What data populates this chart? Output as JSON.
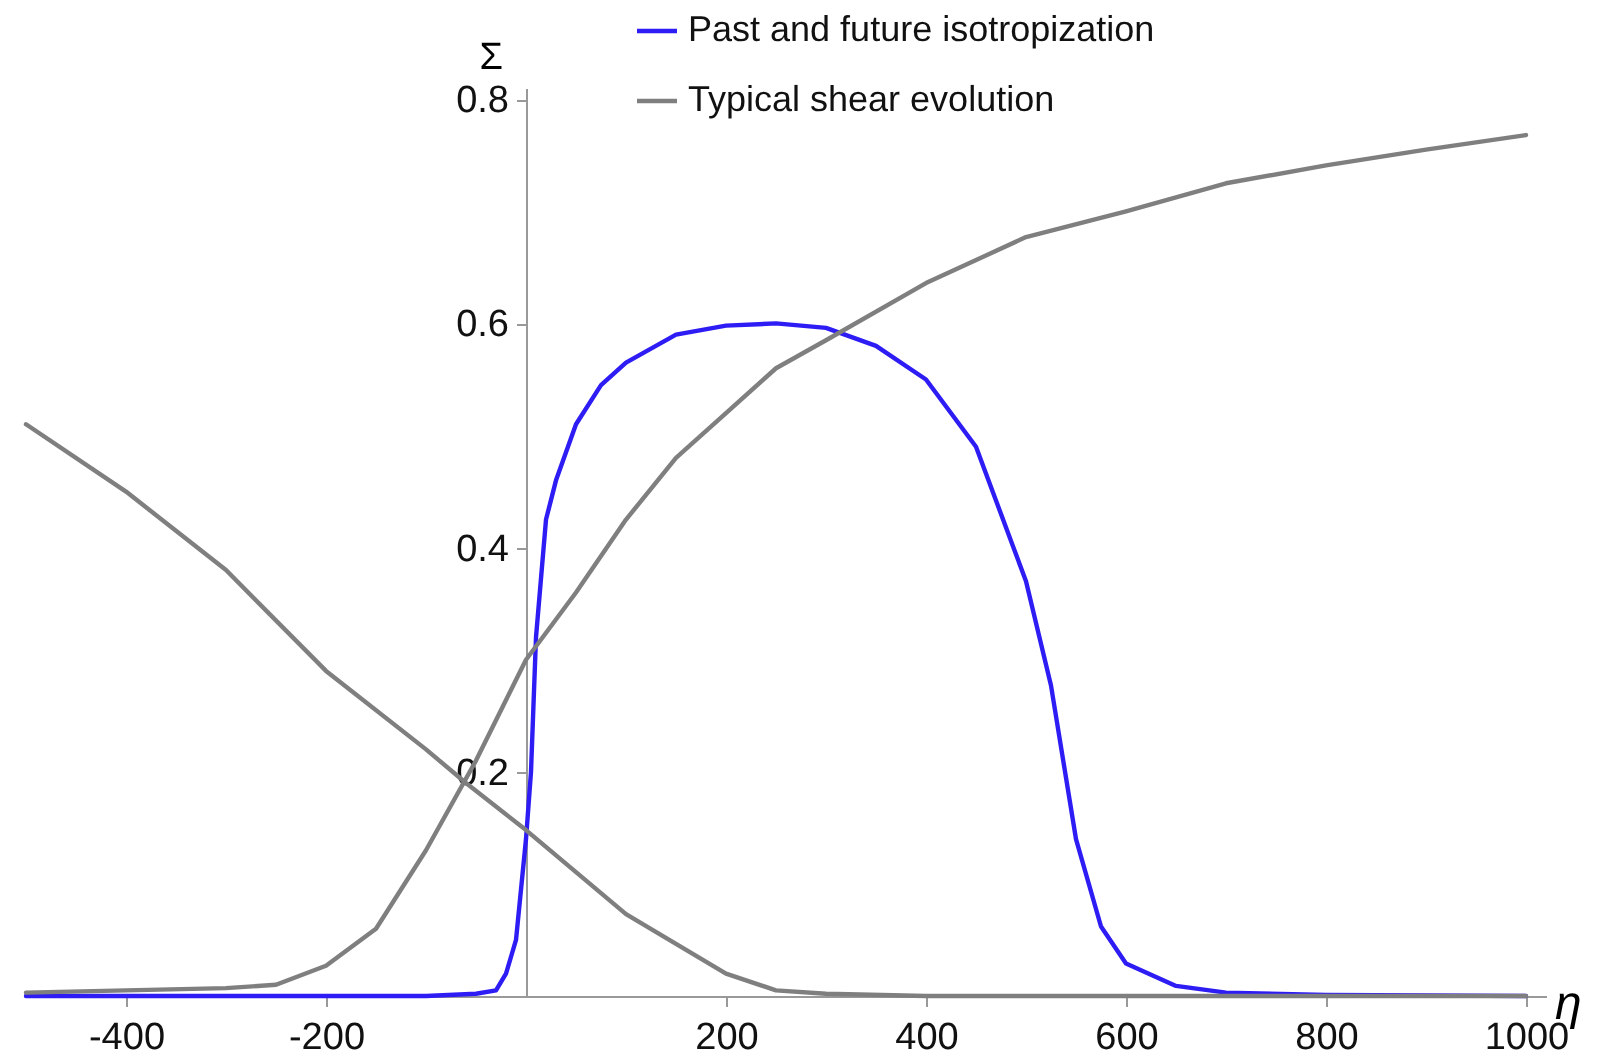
{
  "chart_data": {
    "type": "line",
    "xlabel": "η",
    "ylabel": "Σ",
    "xlim": [
      -500,
      1020
    ],
    "ylim": [
      0,
      0.81
    ],
    "xticks": [
      -400,
      -200,
      200,
      400,
      600,
      800,
      1000
    ],
    "yticks": [
      0.2,
      0.4,
      0.6,
      0.8
    ],
    "legend": "top",
    "grid": false,
    "line_style": "solid",
    "marker": "none",
    "series": [
      {
        "name": "Past and future isotropization",
        "color": "#2e1cf5",
        "x": [
          -500,
          -300,
          -100,
          -50,
          -30,
          -20,
          -10,
          0,
          5,
          10,
          20,
          30,
          50,
          75,
          100,
          150,
          200,
          250,
          300,
          350,
          400,
          450,
          500,
          525,
          550,
          575,
          600,
          650,
          700,
          800,
          1000
        ],
        "values": [
          0,
          0,
          0,
          0.002,
          0.005,
          0.02,
          0.05,
          0.14,
          0.2,
          0.32,
          0.425,
          0.46,
          0.51,
          0.545,
          0.565,
          0.59,
          0.598,
          0.6,
          0.596,
          0.58,
          0.55,
          0.49,
          0.37,
          0.277,
          0.14,
          0.062,
          0.029,
          0.009,
          0.003,
          0.001,
          0
        ]
      },
      {
        "name": "Typical shear evolution",
        "color": "#7f7f7f",
        "x": [
          -500,
          -400,
          -300,
          -250,
          -200,
          -150,
          -100,
          -50,
          0,
          50,
          100,
          150,
          200,
          250,
          300,
          400,
          500,
          600,
          700,
          800,
          900,
          1000
        ],
        "values": [
          0.003,
          0.005,
          0.007,
          0.01,
          0.027,
          0.06,
          0.13,
          0.21,
          0.3,
          0.36,
          0.425,
          0.48,
          0.52,
          0.56,
          0.585,
          0.636,
          0.677,
          0.7,
          0.725,
          0.741,
          0.755,
          0.768
        ]
      },
      {
        "color": "#7f7f7f",
        "x": [
          -500,
          -400,
          -300,
          -200,
          -100,
          -60,
          0,
          100,
          200,
          250,
          300,
          400,
          1000
        ],
        "values": [
          0.51,
          0.45,
          0.38,
          0.29,
          0.22,
          0.19,
          0.148,
          0.073,
          0.02,
          0.005,
          0.002,
          0,
          0
        ]
      }
    ]
  }
}
